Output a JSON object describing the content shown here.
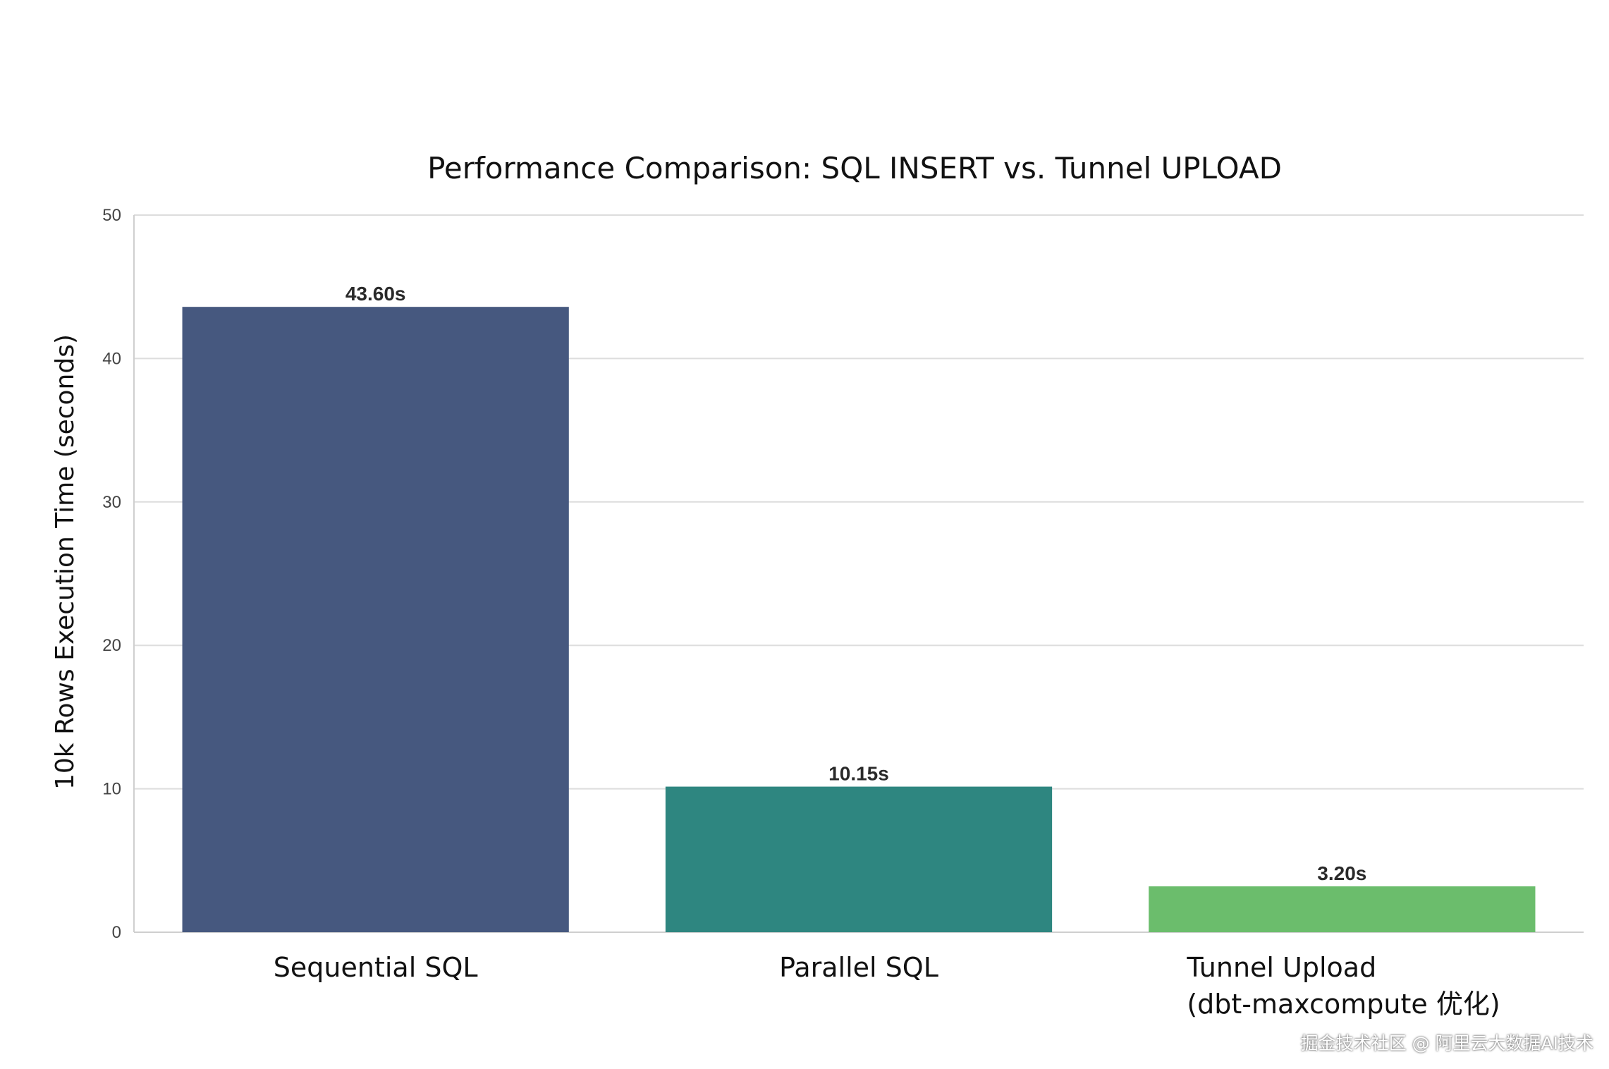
{
  "chart_data": {
    "type": "bar",
    "title": "Performance Comparison: SQL INSERT vs. Tunnel UPLOAD",
    "xlabel": "",
    "ylabel": "10k Rows Execution Time (seconds)",
    "categories": [
      [
        "Sequential SQL"
      ],
      [
        "Parallel SQL"
      ],
      [
        "Tunnel Upload",
        "(dbt-maxcompute 优化)"
      ]
    ],
    "values": [
      43.6,
      10.15,
      3.2
    ],
    "data_labels": [
      "43.60s",
      "10.15s",
      "3.20s"
    ],
    "colors": [
      "#46587f",
      "#2e8680",
      "#6bbd6c"
    ],
    "ylim": [
      0,
      50
    ],
    "yticks": [
      0,
      10,
      20,
      30,
      40,
      50
    ],
    "grid": "horizontal",
    "legend": "none"
  },
  "watermark": "掘金技术社区 @ 阿里云大数据AI技术"
}
